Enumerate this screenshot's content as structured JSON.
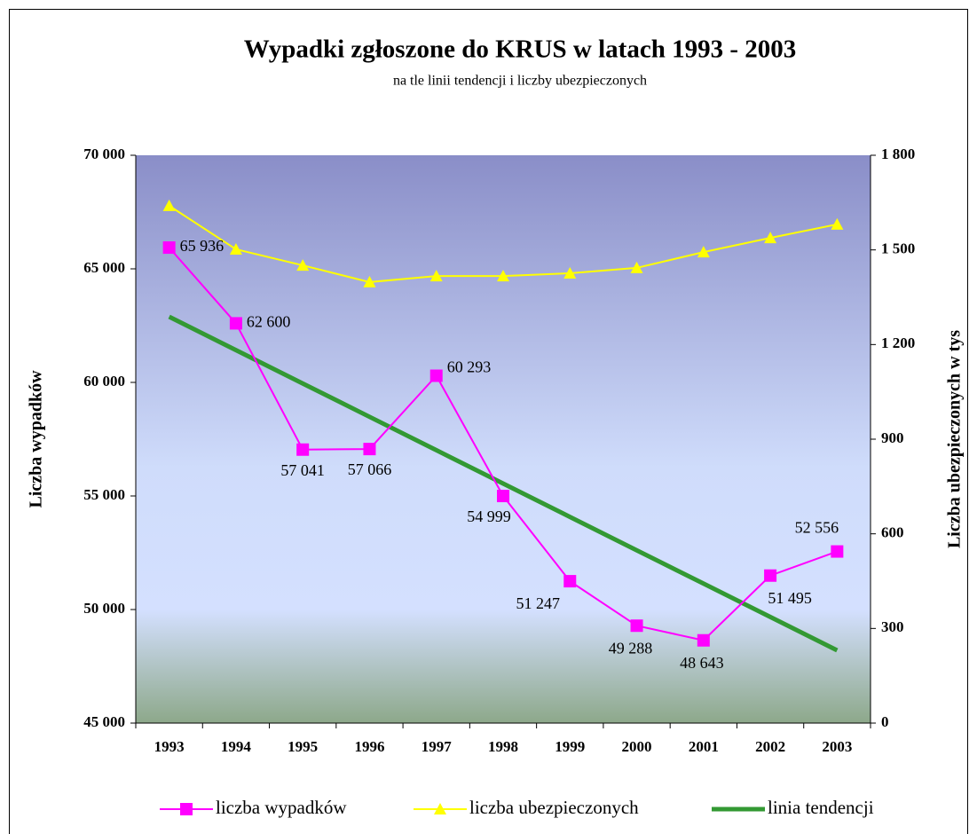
{
  "chart_data": {
    "type": "line",
    "title": "Wypadki zgłoszone do KRUS w latach 1993 - 2003",
    "subtitle": "na tle linii tendencji i liczby ubezpieczonych",
    "y_label": "Liczba wypadków",
    "y2_label": "Liczba ubezpieczonych w tys",
    "categories": [
      "1993",
      "1994",
      "1995",
      "1996",
      "1997",
      "1998",
      "1999",
      "2000",
      "2001",
      "2002",
      "2003"
    ],
    "series": [
      {
        "name": "liczba wypadków",
        "color": "#ff00ff",
        "marker": "square",
        "values": [
          65936,
          62600,
          57041,
          57066,
          60293,
          54999,
          51247,
          49288,
          48643,
          51495,
          52556
        ],
        "value_labels": [
          "65 936",
          "62 600",
          "57 041",
          "57 066",
          "60 293",
          "54 999",
          "51 247",
          "49 288",
          "48 643",
          "51 495",
          "52 556"
        ]
      },
      {
        "name": "liczba ubezpieczonych",
        "color": "#ffff00",
        "marker": "triangle",
        "axis": "y2",
        "values": [
          1640,
          1502,
          1451,
          1398,
          1417,
          1417,
          1426,
          1443,
          1493,
          1538,
          1581
        ]
      },
      {
        "name": "linia tendencji",
        "color": "#339933",
        "marker": "none",
        "values": [
          62890,
          61421,
          59953,
          58484,
          57015,
          55547,
          54078,
          52609,
          51141,
          49672,
          48203
        ]
      }
    ],
    "ylim": [
      45000,
      70000
    ],
    "yticks": [
      {
        "value": 45000,
        "label": "45 000"
      },
      {
        "value": 50000,
        "label": "50 000"
      },
      {
        "value": 55000,
        "label": "55 000"
      },
      {
        "value": 60000,
        "label": "60 000"
      },
      {
        "value": 65000,
        "label": "65 000"
      },
      {
        "value": 70000,
        "label": "70 000"
      }
    ],
    "y2lim": [
      0,
      1800
    ],
    "y2ticks": [
      0,
      300,
      600,
      900,
      {
        "value": 1200,
        "label": "1 200"
      },
      {
        "value": 1500,
        "label": "1 500"
      },
      {
        "value": 1800,
        "label": "1 800"
      }
    ],
    "legend": "bottom"
  }
}
